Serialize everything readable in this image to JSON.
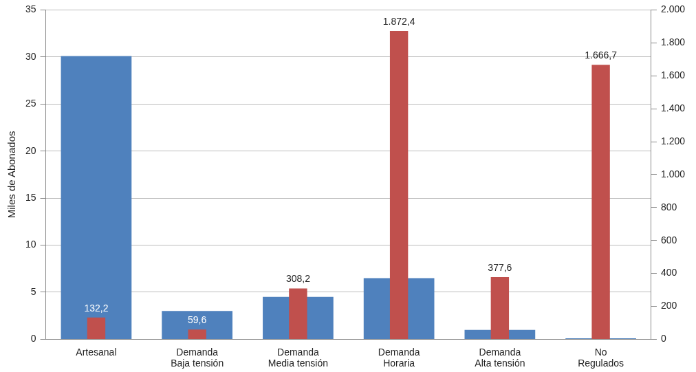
{
  "chart_data": {
    "type": "bar",
    "ylabel": "Miles de Abonados",
    "categories": [
      "Artesanal",
      "Demanda\nBaja tensión",
      "Demanda\nMedia tensión",
      "Demanda\nHoraria",
      "Demanda\nAlta tensión",
      "No\nRegulados"
    ],
    "series": [
      {
        "color": "#4f81bd",
        "values": [
          30.1,
          3.0,
          4.5,
          6.5,
          1.0,
          0.1
        ]
      },
      {
        "color": "#c0504d",
        "axis": "y2",
        "values": [
          132.2,
          59.6,
          308.2,
          1872.4,
          377.6,
          1666.7
        ],
        "value_labels": [
          "132,2",
          "59,6",
          "308,2",
          "1.872,4",
          "377,6",
          "1.666,7"
        ]
      }
    ],
    "ylim": [
      0,
      35
    ],
    "yticks": [
      0,
      5,
      10,
      15,
      20,
      25,
      30,
      35
    ],
    "y2lim": [
      0,
      2000
    ],
    "y2ticks": [
      0,
      200,
      400,
      600,
      800,
      {
        "value": 1000,
        "label": "1.000"
      },
      {
        "value": 1200,
        "label": "1.200"
      },
      {
        "value": 1400,
        "label": "1.400"
      },
      {
        "value": 1600,
        "label": "1.600"
      },
      {
        "value": 1800,
        "label": "1.800"
      },
      {
        "value": 2000,
        "label": "2.000"
      }
    ],
    "grid": "y",
    "legend": false
  }
}
